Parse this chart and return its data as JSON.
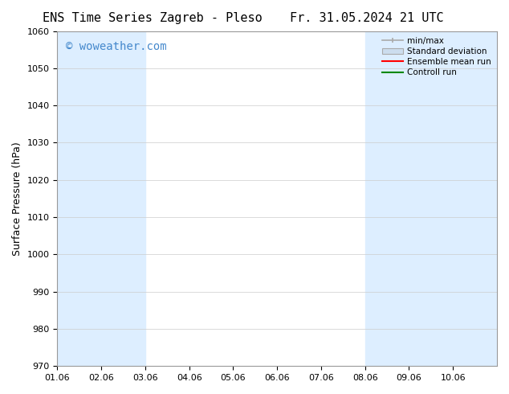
{
  "title_left": "ENS Time Series Zagreb - Pleso",
  "title_right": "Fr. 31.05.2024 21 UTC",
  "ylabel": "Surface Pressure (hPa)",
  "xlim": [
    0,
    10
  ],
  "ylim": [
    970,
    1060
  ],
  "yticks": [
    970,
    980,
    990,
    1000,
    1010,
    1020,
    1030,
    1040,
    1050,
    1060
  ],
  "xtick_labels": [
    "01.06",
    "02.06",
    "03.06",
    "04.06",
    "05.06",
    "06.06",
    "07.06",
    "08.06",
    "09.06",
    "10.06"
  ],
  "xtick_positions": [
    0,
    1,
    2,
    3,
    4,
    5,
    6,
    7,
    8,
    9
  ],
  "shaded_bands": [
    {
      "xmin": 0.0,
      "xmax": 1.0
    },
    {
      "xmin": 1.0,
      "xmax": 2.0
    },
    {
      "xmin": 7.0,
      "xmax": 8.0
    },
    {
      "xmin": 8.0,
      "xmax": 9.0
    },
    {
      "xmin": 9.0,
      "xmax": 10.0
    }
  ],
  "band_color": "#ddeeff",
  "background_color": "#ffffff",
  "watermark_text": "© woweather.com",
  "watermark_color": "#4488cc",
  "watermark_fontsize": 10,
  "legend_minmax_color": "#aaaaaa",
  "legend_stddev_color": "#ccddee",
  "legend_ensemble_color": "#ff0000",
  "legend_control_color": "#008800",
  "title_fontsize": 11,
  "axis_label_fontsize": 9,
  "tick_fontsize": 8,
  "grid_color": "#cccccc"
}
